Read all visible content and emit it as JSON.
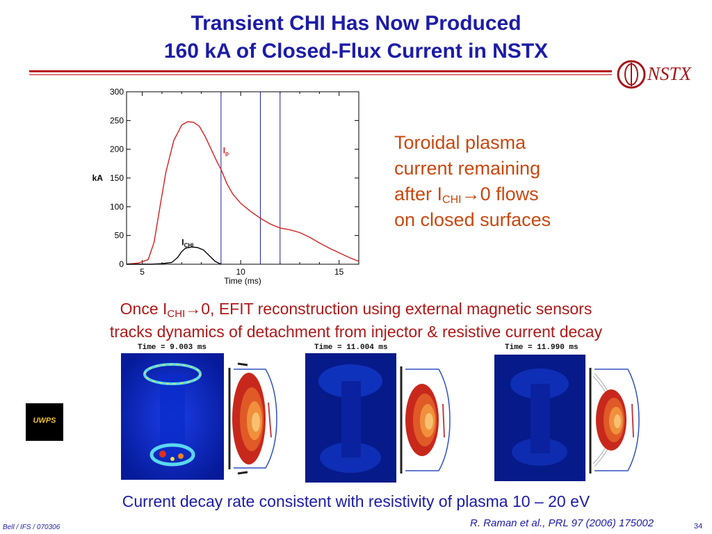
{
  "slide": {
    "title_line1": "Transient CHI Has Now Produced",
    "title_line2": "160 kA of Closed-Flux Current in NSTX",
    "logo_text": "NSTX",
    "note": {
      "line1": "Toroidal plasma",
      "line2": "current remaining",
      "line3_pre": "after I",
      "line3_sub": "CHI",
      "line3_post": "→0 flows",
      "line4": "on closed surfaces"
    },
    "statement": {
      "pre": "Once I",
      "sub": "CHI",
      "post": "→0, EFIT reconstruction using external magnetic sensors",
      "line2": "tracks dynamics of detachment from injector & resistive current decay"
    },
    "frames": [
      {
        "time_label": "Time =  9.003 ms"
      },
      {
        "time_label": "Time = 11.004 ms"
      },
      {
        "time_label": "Time = 11.990 ms"
      }
    ],
    "badge_text": "UWPS",
    "conclusion": "Current decay rate consistent with resistivity of plasma 10 – 20 eV",
    "reference": "R. Raman et al., PRL 97 (2006) 175002",
    "credit": "Bell / IFS / 070306",
    "page_number": "34",
    "colors": {
      "title": "#1c1ca8",
      "rule": "#b8181c",
      "note": "#c84810",
      "statement": "#b01818",
      "ip_trace": "#d42020",
      "ichi_trace": "#000000",
      "marker_lines": "#2020a0"
    }
  },
  "chart_data": {
    "type": "line",
    "xlabel": "Time (ms)",
    "ylabel": "kA",
    "xlim": [
      4.2,
      16.0
    ],
    "ylim": [
      0,
      300
    ],
    "xticks": [
      5,
      10,
      15
    ],
    "yticks": [
      0,
      50,
      100,
      150,
      200,
      250,
      300
    ],
    "vertical_markers": [
      9.0,
      11.0,
      12.0
    ],
    "series": [
      {
        "name": "Ip",
        "label_main": "I",
        "label_sub": "p",
        "label_at": [
          9.1,
          193
        ],
        "color": "#d42020",
        "x": [
          4.2,
          4.8,
          5.3,
          5.6,
          5.9,
          6.2,
          6.6,
          7.0,
          7.3,
          7.6,
          7.9,
          8.2,
          8.5,
          8.8,
          9.0,
          9.3,
          9.6,
          10.0,
          10.5,
          11.0,
          11.5,
          12.0,
          12.5,
          13.0,
          13.5,
          14.0,
          14.5,
          15.0,
          15.5,
          16.0
        ],
        "y": [
          0,
          2,
          8,
          38,
          100,
          160,
          215,
          242,
          248,
          247,
          240,
          222,
          200,
          178,
          165,
          140,
          122,
          106,
          92,
          80,
          70,
          63,
          60,
          55,
          47,
          37,
          28,
          20,
          12,
          5
        ]
      },
      {
        "name": "ICHI",
        "label_main": "I",
        "label_sub": "CHI",
        "label_at": [
          7.0,
          33
        ],
        "color": "#000000",
        "x": [
          4.2,
          5.5,
          6.0,
          6.5,
          6.8,
          7.0,
          7.2,
          7.5,
          7.8,
          8.1,
          8.4,
          8.7,
          9.0
        ],
        "y": [
          0,
          0,
          1,
          3,
          12,
          22,
          28,
          30,
          29,
          25,
          15,
          5,
          0
        ]
      }
    ]
  }
}
